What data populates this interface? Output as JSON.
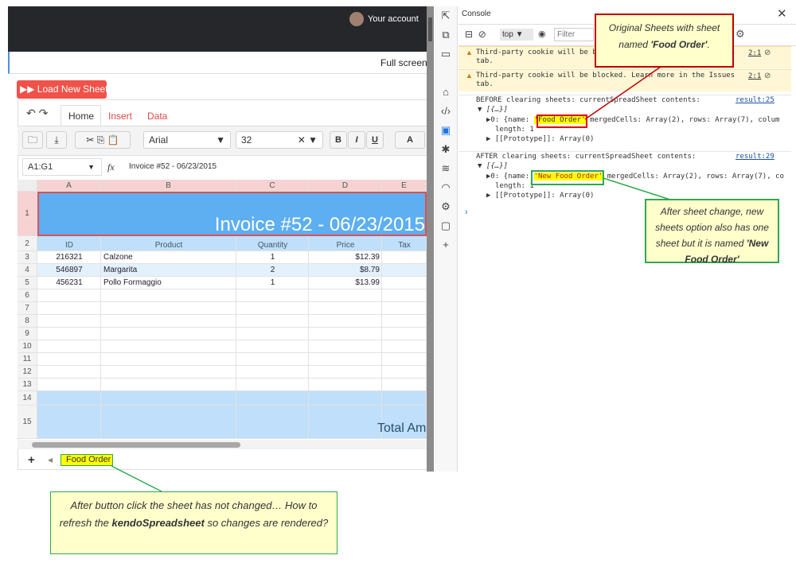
{
  "app": {
    "account": "Your account",
    "full_screen": "Full screen",
    "load_button": "Load New Sheet",
    "tabs": [
      "Home",
      "Insert",
      "Data"
    ],
    "font": "Arial",
    "font_size": "32",
    "format_buttons": [
      "B",
      "I",
      "U",
      "A"
    ],
    "name_box": "A1:G1",
    "fx": "fx",
    "formula": "Invoice #52 - 06/23/2015",
    "sheet_tab": "Food Order"
  },
  "sheet": {
    "columns": [
      "A",
      "B",
      "C",
      "D",
      "E"
    ],
    "row_numbers": [
      1,
      2,
      3,
      4,
      5,
      6,
      7,
      8,
      9,
      10,
      11,
      12,
      13,
      14,
      15
    ],
    "title": "Invoice #52 - 06/23/2015",
    "header": [
      "ID",
      "Product",
      "Quantity",
      "Price",
      "Tax"
    ],
    "rows": [
      [
        "216321",
        "Calzone",
        "1",
        "$12.39"
      ],
      [
        "546897",
        "Margarita",
        "2",
        "$8.79"
      ],
      [
        "456231",
        "Pollo Formaggio",
        "1",
        "$13.99"
      ]
    ],
    "total": "Total Am"
  },
  "console": {
    "title": "Console",
    "context": "top",
    "filter": "Filter",
    "warnings": [
      {
        "text": "Third-party cookie will be blocked. Learn more in the Issues",
        "text2": "tab.",
        "source": "2:1"
      },
      {
        "text": "Third-party cookie will be blocked. Learn more in the Issues",
        "text2": "tab.",
        "source": "2:1"
      }
    ],
    "logs": [
      {
        "message": "BEFORE clearing sheets: currentSpreadSheet contents:",
        "source": "result:25",
        "array": "▼ [{…}]",
        "item_prefix": "▶0: {name: ",
        "item_name": "'Food Order'",
        "item_rest": " mergedCells: Array(2), rows: Array(7), colum",
        "length": "length: 1",
        "prototype": "▶ [[Prototype]]: Array(0)"
      },
      {
        "message": "AFTER clearing  sheets: currentSpreadSheet contents:",
        "source": "result:29",
        "array": "▼ [{…}]",
        "item_prefix": "▶0: {name: ",
        "item_name": "'New Food Order'",
        "item_rest": " mergedCells: Array(2), rows: Array(7), co",
        "length": "length: 1",
        "prototype": "▶ [[Prototype]]: Array(0)"
      }
    ]
  },
  "callouts": [
    {
      "parts": [
        "Original Sheets with sheet named ",
        "'Food Order'",
        "."
      ]
    },
    {
      "parts": [
        "After sheet change, new sheets option also has one sheet but it is named ",
        "'New Food Order'"
      ]
    },
    {
      "parts": [
        "After button click the sheet has not changed… How to refresh the ",
        "kendoSpreadsheet",
        " so changes are rendered?"
      ]
    }
  ]
}
